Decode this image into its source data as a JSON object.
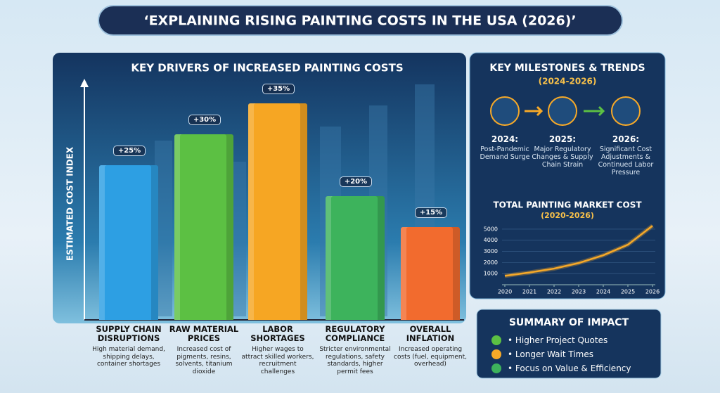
{
  "title": "‘EXPLAINING RISING PAINTING COSTS IN THE USA (2026)’",
  "milestones": {
    "title": "KEY MILESTONES & TRENDS",
    "subtitle": "(2024-2026)",
    "items": [
      {
        "year": "2024:",
        "text": "Post-Pandemic Demand Surge"
      },
      {
        "year": "2025:",
        "text": "Major Regulatory Changes & Supply Chain Strain"
      },
      {
        "year": "2026:",
        "text": "Significant Cost Adjustments & Continued Labor Pressure"
      }
    ]
  },
  "summary": {
    "title": "SUMMARY OF IMPACT",
    "items": [
      "Higher Project Quotes",
      "Longer Wait Times",
      "Focus on Value & Efficiency"
    ]
  },
  "chart_data": [
    {
      "type": "bar",
      "title": "KEY DRIVERS OF INCREASED PAINTING COSTS",
      "y_label": "ESTIMATED COST INDEX",
      "categories": [
        "SUPPLY CHAIN DISRUPTIONS",
        "RAW MATERIAL PRICES",
        "LABOR SHORTAGES",
        "REGULATORY COMPLIANCE",
        "OVERALL INFLATION"
      ],
      "descriptions": [
        "High material demand, shipping delays, container shortages",
        "Increased cost of pigments, resins, solvents, titanium dioxide",
        "Higher wages to attract skilled workers, recruitment challenges",
        "Stricter environmental regulations, safety standards, higher permit fees",
        "Increased operating costs (fuel, equipment, overhead)"
      ],
      "values": [
        25,
        30,
        35,
        20,
        15
      ],
      "value_labels": [
        "+25%",
        "+30%",
        "+35%",
        "+20%",
        "+15%"
      ],
      "colors": [
        "#2d9fe3",
        "#5cc043",
        "#f6a623",
        "#3db35c",
        "#f26b2e"
      ]
    },
    {
      "type": "line",
      "title": "TOTAL PAINTING MARKET COST",
      "subtitle": "(2020-2026)",
      "x": [
        2020,
        2021,
        2022,
        2023,
        2024,
        2025,
        2026
      ],
      "values": [
        800,
        1100,
        1450,
        1950,
        2650,
        3600,
        5300
      ],
      "xlim": [
        2020,
        2026
      ],
      "xticks": [
        2020,
        2021,
        2022,
        2023,
        2024,
        2025,
        2026
      ],
      "ylim": [
        0,
        5500
      ],
      "yticks": [
        1000,
        2000,
        3000,
        4000,
        5000
      ],
      "color": "#f7a928",
      "grid": true
    }
  ]
}
